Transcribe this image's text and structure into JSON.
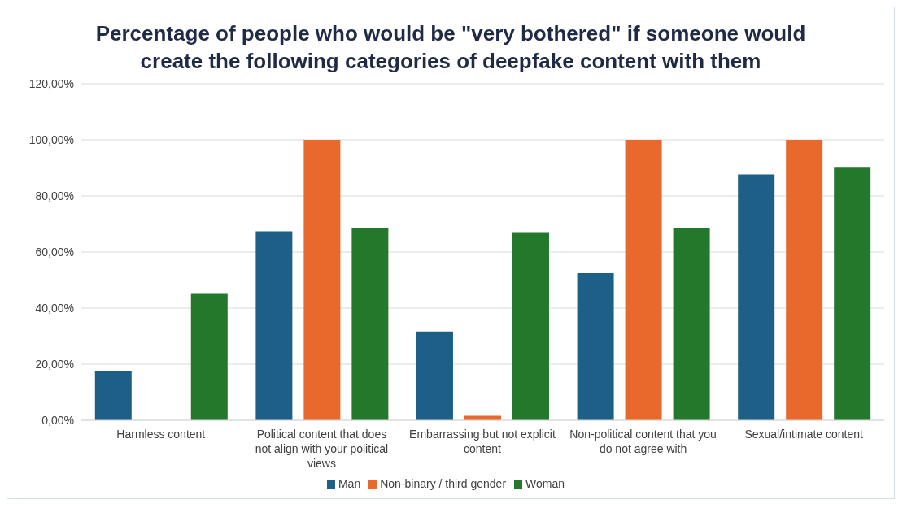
{
  "chart_data": {
    "type": "bar",
    "title": "Percentage of people who would be \"very bothered\" if someone would create the following categories of deepfake content with them",
    "categories": [
      "Harmless content",
      "Political content that does not align with your political views",
      "Embarrassing but not explicit content",
      "Non-political content that you do not agree with",
      "Sexual/intimate content"
    ],
    "series": [
      {
        "name": "Man",
        "color": "#1d5f86",
        "values": [
          17.4,
          67.4,
          31.7,
          52.5,
          87.7
        ]
      },
      {
        "name": "Non-binary / third gender",
        "color": "#e9692c",
        "values": [
          0,
          100,
          1.6,
          100,
          100
        ]
      },
      {
        "name": "Woman",
        "color": "#23782b",
        "values": [
          45.1,
          68.4,
          66.8,
          68.4,
          90.1
        ]
      }
    ],
    "ylim": [
      0,
      120
    ],
    "yticks": [
      {
        "value": 0,
        "label": "0,00%"
      },
      {
        "value": 20,
        "label": "20,00%"
      },
      {
        "value": 40,
        "label": "40,00%"
      },
      {
        "value": 60,
        "label": "60,00%"
      },
      {
        "value": 80,
        "label": "80,00%"
      },
      {
        "value": 100,
        "label": "100,00%"
      },
      {
        "value": 120,
        "label": "120,00%"
      }
    ],
    "grid": "y",
    "legend": "bottom"
  }
}
